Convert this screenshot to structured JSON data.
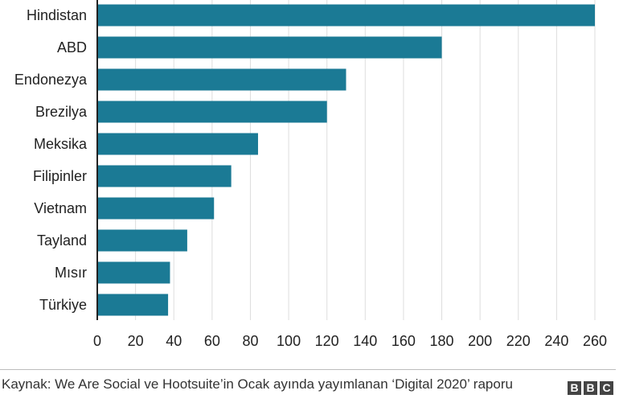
{
  "chart_data": {
    "type": "bar",
    "orientation": "horizontal",
    "categories": [
      "Hindistan",
      "ABD",
      "Endonezya",
      "Brezilya",
      "Meksika",
      "Filipinler",
      "Vietnam",
      "Tayland",
      "Mısır",
      "Türkiye"
    ],
    "values": [
      260,
      180,
      130,
      120,
      84,
      70,
      61,
      47,
      38,
      37
    ],
    "xlim": [
      0,
      260
    ],
    "xticks": [
      0,
      20,
      40,
      60,
      80,
      100,
      120,
      140,
      160,
      180,
      200,
      220,
      240,
      260
    ],
    "grid": true,
    "colors": {
      "bar": "#1b7a95",
      "grid": "#dddddd",
      "axis": "#222222"
    }
  },
  "footer": {
    "source": "Kaynak: We Are Social ve Hootsuite’in Ocak ayında yayımlanan ‘Digital 2020’ raporu",
    "logo_letters": [
      "B",
      "B",
      "C"
    ]
  }
}
